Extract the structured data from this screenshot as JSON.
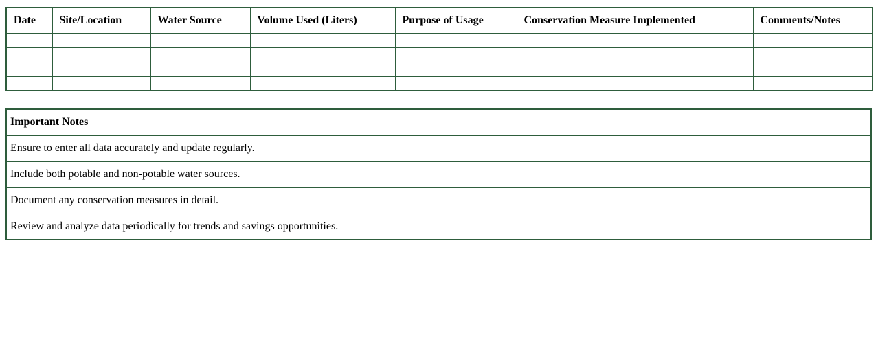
{
  "colors": {
    "table_border": "#2e5d3c",
    "text": "#000000",
    "page_background": "#ffffff"
  },
  "log_table": {
    "headers": [
      "Date",
      "Site/Location",
      "Water Source",
      "Volume Used (Liters)",
      "Purpose of Usage",
      "Conservation Measure Implemented",
      "Comments/Notes"
    ],
    "empty_row_count": 4
  },
  "notes": {
    "title": "Important Notes",
    "items": [
      "Ensure to enter all data accurately and update regularly.",
      "Include both potable and non-potable water sources.",
      "Document any conservation measures in detail.",
      "Review and analyze data periodically for trends and savings opportunities."
    ]
  }
}
